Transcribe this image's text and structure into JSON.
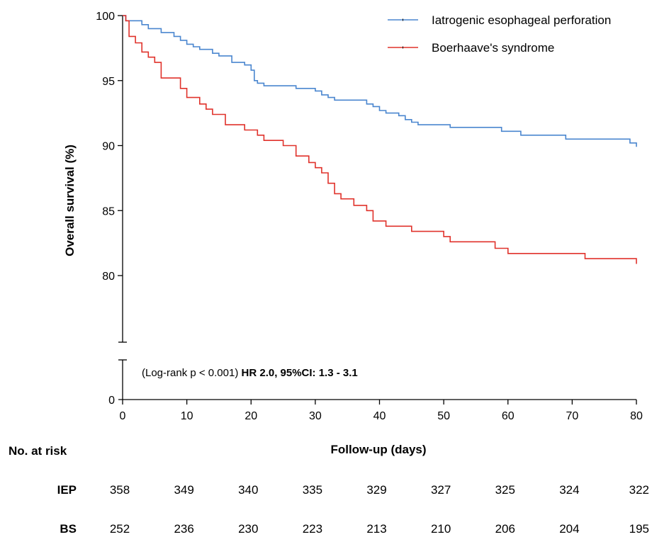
{
  "chart_data": {
    "type": "line",
    "title": "",
    "xlabel": "Follow-up (days)",
    "ylabel": "Overall survival (%)",
    "xlim": [
      0,
      80
    ],
    "ylim_upper": [
      75,
      100
    ],
    "ylim_lower": [
      0,
      3
    ],
    "x_ticks": [
      "0",
      "10",
      "20",
      "30",
      "40",
      "50",
      "60",
      "70",
      "80"
    ],
    "y_ticks_upper": [
      "80",
      "85",
      "90",
      "95",
      "100"
    ],
    "y_ticks_lower": [
      "0"
    ],
    "axis_break": true,
    "grid": false,
    "legend_position": "top-right",
    "annotation": {
      "plain": "(Log-rank p < 0.001) ",
      "bold": "HR 2.0, 95%CI: 1.3 - 3.1"
    },
    "series": [
      {
        "name": "Iatrogenic esophageal perforation",
        "color": "#4a86cf",
        "steps": [
          [
            0,
            100
          ],
          [
            0.5,
            99.6
          ],
          [
            3,
            99.3
          ],
          [
            4,
            99.0
          ],
          [
            6,
            98.7
          ],
          [
            8,
            98.4
          ],
          [
            9,
            98.1
          ],
          [
            10,
            97.8
          ],
          [
            11,
            97.6
          ],
          [
            12,
            97.4
          ],
          [
            14,
            97.1
          ],
          [
            15,
            96.9
          ],
          [
            17,
            96.4
          ],
          [
            19,
            96.2
          ],
          [
            20,
            95.8
          ],
          [
            20.5,
            95.0
          ],
          [
            21,
            94.8
          ],
          [
            22,
            94.6
          ],
          [
            27,
            94.4
          ],
          [
            30,
            94.2
          ],
          [
            31,
            93.9
          ],
          [
            32,
            93.7
          ],
          [
            33,
            93.5
          ],
          [
            38,
            93.2
          ],
          [
            39,
            93.0
          ],
          [
            40,
            92.7
          ],
          [
            41,
            92.5
          ],
          [
            43,
            92.3
          ],
          [
            44,
            92.0
          ],
          [
            45,
            91.8
          ],
          [
            46,
            91.6
          ],
          [
            51,
            91.4
          ],
          [
            59,
            91.1
          ],
          [
            62,
            90.8
          ],
          [
            69,
            90.5
          ],
          [
            79,
            90.2
          ],
          [
            80,
            89.9
          ]
        ]
      },
      {
        "name": "Boerhaave's syndrome",
        "color": "#e0322b",
        "steps": [
          [
            0,
            100
          ],
          [
            0.5,
            99.6
          ],
          [
            1,
            98.4
          ],
          [
            2,
            97.9
          ],
          [
            3,
            97.2
          ],
          [
            4,
            96.8
          ],
          [
            5,
            96.4
          ],
          [
            6,
            95.2
          ],
          [
            9,
            94.4
          ],
          [
            10,
            93.7
          ],
          [
            12,
            93.2
          ],
          [
            13,
            92.8
          ],
          [
            14,
            92.4
          ],
          [
            16,
            91.6
          ],
          [
            19,
            91.2
          ],
          [
            21,
            90.8
          ],
          [
            22,
            90.4
          ],
          [
            25,
            90.0
          ],
          [
            27,
            89.2
          ],
          [
            29,
            88.7
          ],
          [
            30,
            88.3
          ],
          [
            31,
            87.9
          ],
          [
            32,
            87.1
          ],
          [
            33,
            86.3
          ],
          [
            34,
            85.9
          ],
          [
            36,
            85.4
          ],
          [
            38,
            85.0
          ],
          [
            39,
            84.2
          ],
          [
            41,
            83.8
          ],
          [
            45,
            83.4
          ],
          [
            50,
            83.0
          ],
          [
            51,
            82.6
          ],
          [
            58,
            82.1
          ],
          [
            60,
            81.7
          ],
          [
            72,
            81.3
          ],
          [
            80,
            80.9
          ]
        ]
      }
    ],
    "risk_table": {
      "header": "No. at risk",
      "rows": [
        {
          "label": "IEP",
          "values": [
            "358",
            "349",
            "340",
            "335",
            "329",
            "327",
            "325",
            "324",
            "322"
          ]
        },
        {
          "label": "BS",
          "values": [
            "252",
            "236",
            "230",
            "223",
            "213",
            "210",
            "206",
            "204",
            "195"
          ]
        }
      ]
    }
  }
}
